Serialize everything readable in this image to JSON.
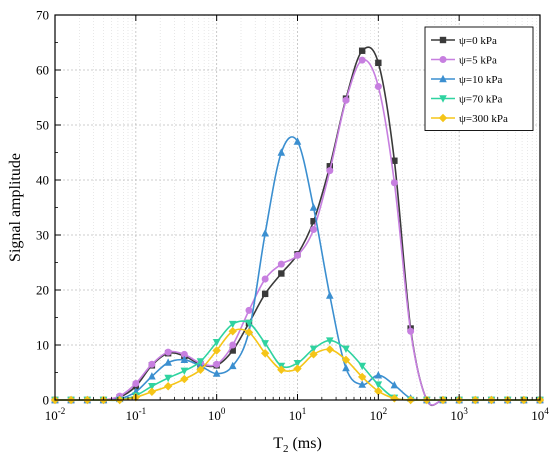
{
  "chart_data": {
    "type": "line",
    "xlabel": "T",
    "xlabel_sub": "2",
    "xlabel_unit": " (ms)",
    "ylabel": "Signal amplitude",
    "x_scale": "log",
    "xlim": [
      0.01,
      10000
    ],
    "ylim": [
      0,
      70
    ],
    "x_ticks": [
      {
        "value": 0.01,
        "base": "10",
        "exp": "-2"
      },
      {
        "value": 0.1,
        "base": "10",
        "exp": "-1"
      },
      {
        "value": 1,
        "base": "10",
        "exp": "0"
      },
      {
        "value": 10,
        "base": "10",
        "exp": "1"
      },
      {
        "value": 100,
        "base": "10",
        "exp": "2"
      },
      {
        "value": 1000,
        "base": "10",
        "exp": "3"
      },
      {
        "value": 10000,
        "base": "10",
        "exp": "4"
      }
    ],
    "y_ticks": [
      0,
      10,
      20,
      30,
      40,
      50,
      60,
      70
    ],
    "grid": true,
    "legend_position": "top-right",
    "x": [
      0.01,
      0.0158,
      0.0251,
      0.0398,
      0.0631,
      0.1,
      0.158,
      0.251,
      0.398,
      0.631,
      1,
      1.58,
      2.51,
      3.98,
      6.31,
      10,
      15.8,
      25.1,
      39.8,
      63.1,
      100,
      158,
      251,
      398,
      631,
      1000,
      1580,
      2510,
      3980,
      6310,
      10000
    ],
    "series": [
      {
        "name": "ψ=0 kPa",
        "marker": "square",
        "color": "#3a3a3a",
        "values": [
          0,
          0,
          0,
          0,
          0.5,
          2.5,
          6.3,
          8.5,
          8.0,
          6.5,
          6.3,
          9.0,
          14.0,
          19.3,
          23.0,
          26.5,
          32.5,
          42.5,
          54.8,
          63.5,
          61.3,
          43.5,
          13.0,
          0,
          0,
          0,
          0,
          0,
          0,
          0,
          0
        ]
      },
      {
        "name": "ψ=5 kPa",
        "marker": "circle",
        "color": "#c77fe0",
        "values": [
          0,
          0,
          0,
          0,
          0.7,
          3.0,
          6.5,
          8.7,
          8.3,
          6.7,
          6.5,
          10.0,
          16.3,
          22.0,
          24.7,
          26.3,
          31.0,
          41.7,
          54.5,
          61.8,
          57.0,
          39.5,
          12.5,
          0,
          0,
          0,
          0,
          0,
          0,
          0,
          0
        ]
      },
      {
        "name": "ψ=10 kPa",
        "marker": "triangle-up",
        "color": "#3b8fd0",
        "values": [
          0,
          0,
          0,
          0,
          0.2,
          1.5,
          4.3,
          6.8,
          7.3,
          6.2,
          4.8,
          6.2,
          12.5,
          30.3,
          45.0,
          47.0,
          35.0,
          19.0,
          5.8,
          2.8,
          4.5,
          2.7,
          0.3,
          0,
          0,
          0,
          0,
          0,
          0,
          0,
          0
        ]
      },
      {
        "name": "ψ=70 kPa",
        "marker": "triangle-down",
        "color": "#2fd3a0",
        "values": [
          0,
          0,
          0,
          0,
          0,
          0.8,
          2.5,
          4.0,
          5.3,
          7.0,
          10.5,
          13.8,
          14.0,
          10.3,
          6.2,
          6.7,
          9.3,
          10.8,
          9.3,
          6.2,
          2.8,
          0.4,
          0,
          0,
          0,
          0,
          0,
          0,
          0,
          0,
          0
        ]
      },
      {
        "name": "ψ=300 kPa",
        "marker": "diamond",
        "color": "#f5c518",
        "values": [
          0,
          0,
          0,
          0,
          0,
          0.5,
          1.5,
          2.5,
          3.8,
          5.5,
          9.0,
          12.5,
          12.3,
          8.5,
          5.5,
          5.7,
          8.3,
          9.2,
          7.3,
          4.2,
          1.6,
          0.3,
          0,
          0,
          0,
          0,
          0,
          0,
          0,
          0,
          0
        ]
      }
    ]
  }
}
